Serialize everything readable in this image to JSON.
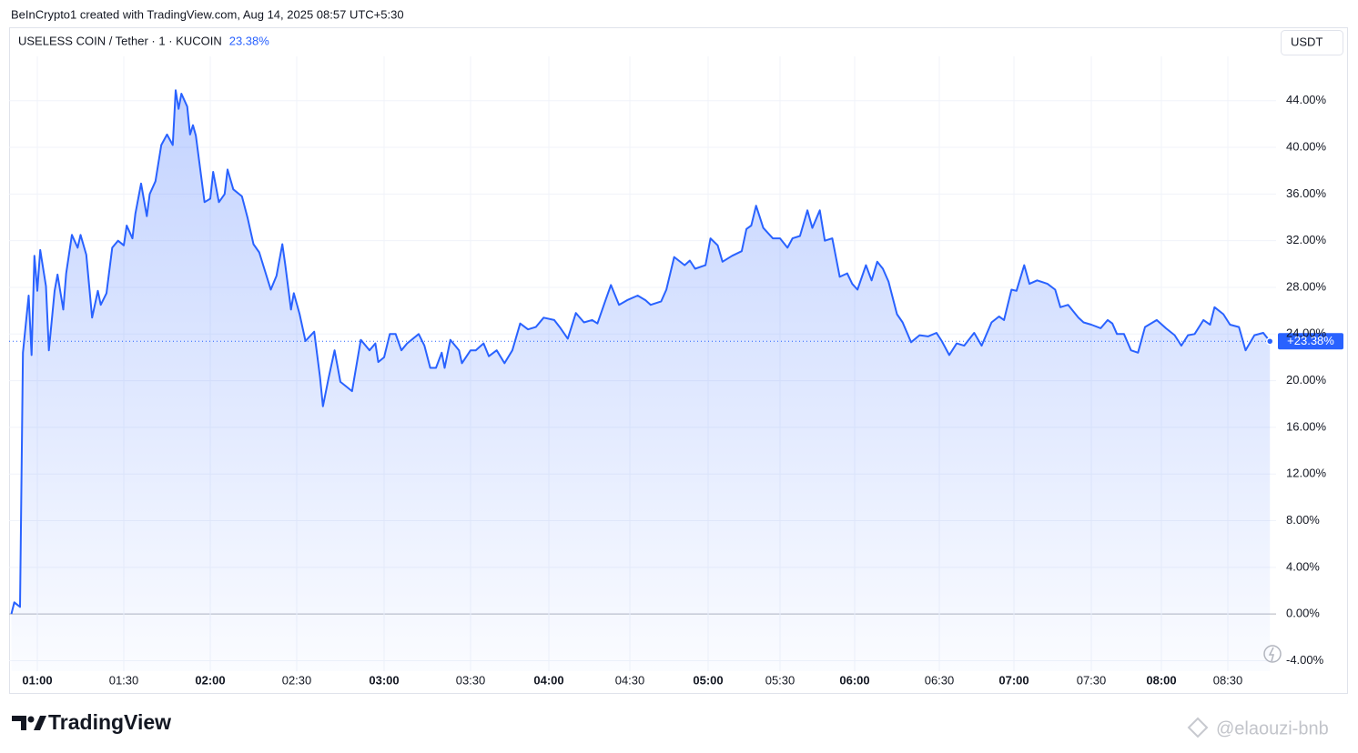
{
  "credit": "BeInCrypto1 created with TradingView.com, Aug 14, 2025 08:57 UTC+5:30",
  "brand": "TradingView",
  "watermark": "@elaouzi-bnb",
  "chart_data": {
    "type": "line",
    "title": "USELESS COIN / Tether · 1 · KUCOIN",
    "change": "23.38%",
    "currency": "USDT",
    "current_value_label": "+23.38%",
    "x": [
      "00:51",
      "00:52",
      "00:54",
      "00:55",
      "00:57",
      "00:58",
      "00:59",
      "01:00",
      "01:01",
      "01:03",
      "01:04",
      "01:06",
      "01:07",
      "01:09",
      "01:10",
      "01:12",
      "01:14",
      "01:15",
      "01:17",
      "01:19",
      "01:21",
      "01:22",
      "01:24",
      "01:26",
      "01:28",
      "01:30",
      "01:31",
      "01:33",
      "01:34",
      "01:36",
      "01:38",
      "01:39",
      "01:41",
      "01:43",
      "01:45",
      "01:47",
      "01:48",
      "01:49",
      "01:50",
      "01:52",
      "01:53",
      "01:54",
      "01:55",
      "01:58",
      "02:00",
      "02:01",
      "02:03",
      "02:05",
      "02:06",
      "02:08",
      "02:11",
      "02:13",
      "02:15",
      "02:17",
      "02:21",
      "02:23",
      "02:25",
      "02:26",
      "02:28",
      "02:29",
      "02:31",
      "02:33",
      "02:36",
      "02:38",
      "02:39",
      "02:41",
      "02:43",
      "02:45",
      "02:49",
      "02:52",
      "02:55",
      "02:57",
      "02:58",
      "03:00",
      "03:02",
      "03:04",
      "03:06",
      "03:08",
      "03:12",
      "03:14",
      "03:16",
      "03:18",
      "03:20",
      "03:21",
      "03:23",
      "03:26",
      "03:27",
      "03:30",
      "03:32",
      "03:35",
      "03:37",
      "03:40",
      "03:43",
      "03:46",
      "03:49",
      "03:52",
      "03:55",
      "03:58",
      "04:02",
      "04:04",
      "04:07",
      "04:10",
      "04:13",
      "04:16",
      "04:18",
      "04:21",
      "04:23",
      "04:26",
      "04:29",
      "04:33",
      "04:36",
      "04:38",
      "04:42",
      "04:44",
      "04:47",
      "04:51",
      "04:53",
      "04:55",
      "04:59",
      "05:01",
      "05:04",
      "05:06",
      "05:10",
      "05:14",
      "05:16",
      "05:18",
      "05:20",
      "05:23",
      "05:27",
      "05:30",
      "05:33",
      "05:35",
      "05:38",
      "05:41",
      "05:43",
      "05:46",
      "05:48",
      "05:51",
      "05:54",
      "05:57",
      "05:59",
      "06:01",
      "06:04",
      "06:06",
      "06:08",
      "06:10",
      "06:12",
      "06:15",
      "06:17",
      "06:20",
      "06:23",
      "06:26",
      "06:29",
      "06:31",
      "06:34",
      "06:37",
      "06:40",
      "06:44",
      "06:47",
      "06:51",
      "06:54",
      "06:56",
      "06:59",
      "07:01",
      "07:04",
      "07:06",
      "07:09",
      "07:13",
      "07:16",
      "07:18",
      "07:21",
      "07:25",
      "07:27",
      "07:30",
      "07:34",
      "07:37",
      "07:39",
      "07:41",
      "07:44",
      "07:47",
      "07:50",
      "07:53",
      "07:58",
      "08:02",
      "08:06",
      "08:09",
      "08:12",
      "08:15",
      "08:19",
      "08:22",
      "08:24",
      "08:28",
      "08:31",
      "08:35",
      "08:38",
      "08:42",
      "08:46",
      "08:49"
    ],
    "series": [
      {
        "name": "USELESS COIN / Tether",
        "color": "#2962ff",
        "values": [
          0,
          1.0,
          0.6,
          22.4,
          27.3,
          22.2,
          30.7,
          27.7,
          31.2,
          28.1,
          22.6,
          27.7,
          29.1,
          26.1,
          29.2,
          32.5,
          31.4,
          32.5,
          30.8,
          25.4,
          27.7,
          26.5,
          27.5,
          31.4,
          32.0,
          31.6,
          33.3,
          32.2,
          34.3,
          36.9,
          34.1,
          36.0,
          37.1,
          40.2,
          41.1,
          40.2,
          44.9,
          43.3,
          44.6,
          43.5,
          41.1,
          41.9,
          41.0,
          35.3,
          35.6,
          37.9,
          35.3,
          36.0,
          38.1,
          36.4,
          35.8,
          33.9,
          31.7,
          31.0,
          27.8,
          29.0,
          31.7,
          30.0,
          26.1,
          27.5,
          25.7,
          23.4,
          24.2,
          20.3,
          17.8,
          20.3,
          22.6,
          19.9,
          19.1,
          23.5,
          22.6,
          23.2,
          21.6,
          22.0,
          24.0,
          24.0,
          22.6,
          23.2,
          24.0,
          23.0,
          21.1,
          21.1,
          22.4,
          21.1,
          23.5,
          22.6,
          21.5,
          22.6,
          22.6,
          23.2,
          22.1,
          22.6,
          21.5,
          22.6,
          24.9,
          24.4,
          24.6,
          25.4,
          25.2,
          24.6,
          23.6,
          25.8,
          25.0,
          25.2,
          24.9,
          26.9,
          28.2,
          26.5,
          26.9,
          27.3,
          26.9,
          26.5,
          26.8,
          27.8,
          30.6,
          29.9,
          30.3,
          29.6,
          29.9,
          32.2,
          31.6,
          30.2,
          30.7,
          31.1,
          33.0,
          33.3,
          35.0,
          33.1,
          32.2,
          32.2,
          31.4,
          32.2,
          32.4,
          34.6,
          33.1,
          34.6,
          32.0,
          32.2,
          28.9,
          29.2,
          28.3,
          27.8,
          29.9,
          28.6,
          30.2,
          29.6,
          28.5,
          25.7,
          25.0,
          23.3,
          23.9,
          23.8,
          24.1,
          23.4,
          22.2,
          23.2,
          23.0,
          24.1,
          23.0,
          25.0,
          25.5,
          25.2,
          27.8,
          27.7,
          29.9,
          28.3,
          28.6,
          28.3,
          27.8,
          26.3,
          26.5,
          25.4,
          25.0,
          24.8,
          24.5,
          25.2,
          24.9,
          24.0,
          24.0,
          22.6,
          22.4,
          24.6,
          25.2,
          24.5,
          23.9,
          23.0,
          23.9,
          24.0,
          25.2,
          24.8,
          26.3,
          25.7,
          24.8,
          24.6,
          22.6,
          23.9,
          24.1,
          23.38
        ]
      }
    ],
    "xticks": [
      "01:00",
      "01:30",
      "02:00",
      "02:30",
      "03:00",
      "03:30",
      "04:00",
      "04:30",
      "05:00",
      "05:30",
      "06:00",
      "06:30",
      "07:00",
      "07:30",
      "08:00",
      "08:30"
    ],
    "ylim": [
      -4.9,
      47.8
    ],
    "yticks": [
      {
        "value": -4,
        "label": "-4.00%"
      },
      {
        "value": 0,
        "label": "0.00%"
      },
      {
        "value": 4,
        "label": "4.00%"
      },
      {
        "value": 8,
        "label": "8.00%"
      },
      {
        "value": 12,
        "label": "12.00%"
      },
      {
        "value": 16,
        "label": "16.00%"
      },
      {
        "value": 20,
        "label": "20.00%"
      },
      {
        "value": 24,
        "label": "24.00%"
      },
      {
        "value": 28,
        "label": "28.00%"
      },
      {
        "value": 32,
        "label": "32.00%"
      },
      {
        "value": 36,
        "label": "36.00%"
      },
      {
        "value": 40,
        "label": "40.00%"
      },
      {
        "value": 44,
        "label": "44.00%"
      }
    ],
    "grid": true
  }
}
